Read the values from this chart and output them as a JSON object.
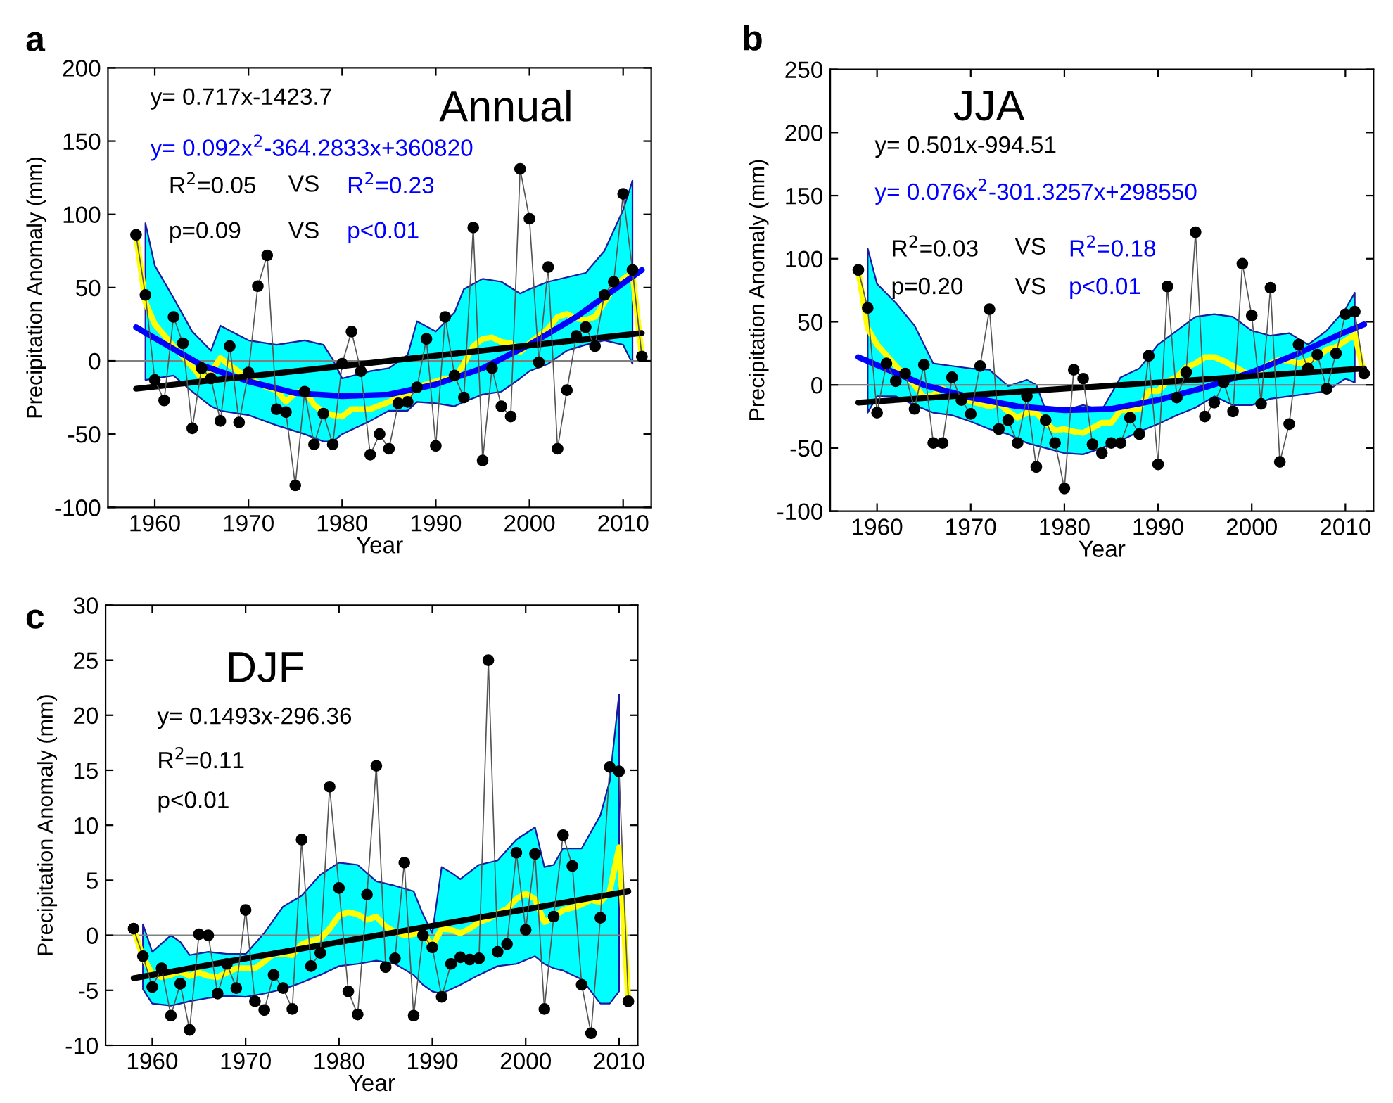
{
  "chart_data": [
    {
      "type": "line",
      "title": "Annual",
      "xlabel": "Year",
      "ylabel": "Precipitation Anomaly (mm)",
      "annotations": [
        "a",
        "y= 0.717x-1423.7",
        "y= 0.092x$^{2}$-364.2833x+360820",
        "R$^{2}$=0.05",
        "VS",
        "R$^{2}$=0.23",
        "p=0.09",
        "VS",
        "p<0.01"
      ],
      "xlim": [
        1955,
        2013
      ],
      "xticks": [
        1960,
        1970,
        1980,
        1990,
        2000,
        2010
      ],
      "ylim": [
        -100,
        200
      ],
      "yticks": [
        -100,
        -50,
        0,
        50,
        100,
        150,
        200
      ],
      "ref_lines": [
        {
          "axis": "y",
          "value": 0,
          "color": "#808080"
        }
      ],
      "x": [
        1958,
        1959,
        1960,
        1961,
        1962,
        1963,
        1964,
        1965,
        1966,
        1967,
        1968,
        1969,
        1970,
        1971,
        1972,
        1973,
        1974,
        1975,
        1976,
        1977,
        1978,
        1979,
        1980,
        1981,
        1982,
        1983,
        1984,
        1985,
        1986,
        1987,
        1988,
        1989,
        1990,
        1991,
        1992,
        1993,
        1994,
        1995,
        1996,
        1997,
        1998,
        1999,
        2000,
        2001,
        2002,
        2003,
        2004,
        2005,
        2006,
        2007,
        2008,
        2009,
        2010,
        2011,
        2012
      ],
      "series": [
        {
          "color": "#000000",
          "marker": "circle",
          "values": [
            86,
            45,
            -13,
            -27,
            30,
            12,
            -46,
            -5,
            -12,
            -41,
            10,
            -42,
            -8,
            51,
            72,
            -33,
            -35,
            -85,
            -21,
            -57,
            -36,
            -57,
            -2,
            20,
            -7,
            -64,
            -50,
            -60,
            -29,
            -28,
            -18,
            15,
            -58,
            30,
            -10,
            -25,
            91,
            -68,
            -5,
            -31,
            -38,
            131,
            97,
            -1,
            64,
            -60,
            -20,
            17,
            23,
            10,
            45,
            54,
            114,
            62,
            3
          ]
        },
        {
          "color": "#ffff00",
          "x": [
            1958,
            1959,
            1960,
            1962,
            1964,
            1965,
            1966,
            1967,
            1968,
            1970,
            1972,
            1973,
            1974,
            1975,
            1976,
            1977,
            1978,
            1979,
            1980,
            1981,
            1983,
            1985,
            1986,
            1987,
            1988,
            1989,
            1990,
            1991,
            1992,
            1993,
            1994,
            1995,
            1996,
            1997,
            1998,
            1999,
            2000,
            2001,
            2002,
            2003,
            2004,
            2005,
            2006,
            2007,
            2008,
            2009,
            2010,
            2011,
            2012
          ],
          "values": [
            86,
            40,
            25,
            10,
            -4,
            -12,
            -8,
            2,
            -3,
            -12,
            -18,
            -20,
            -28,
            -22,
            -20,
            -30,
            -35,
            -37,
            -38,
            -33,
            -33,
            -28,
            -25,
            -24,
            -18,
            -16,
            -14,
            -12,
            -12,
            -2,
            10,
            15,
            16,
            13,
            12,
            6,
            12,
            17,
            22,
            30,
            32,
            29,
            28,
            30,
            40,
            50,
            56,
            60,
            3
          ],
          "upper": [
            null,
            94,
            65,
            43,
            20,
            null,
            7,
            24,
            null,
            14,
            null,
            11,
            null,
            null,
            14,
            null,
            11,
            1,
            -12,
            null,
            -7,
            -5,
            null,
            4,
            27,
            null,
            20,
            null,
            33,
            49,
            null,
            56,
            null,
            54,
            null,
            46,
            49,
            null,
            54,
            null,
            57,
            null,
            60,
            null,
            75,
            null,
            103,
            123,
            null
          ],
          "lower": [
            null,
            -13,
            -12,
            -10,
            -21,
            null,
            -31,
            -34,
            null,
            -37,
            null,
            -44,
            null,
            null,
            -50,
            null,
            -55,
            -55,
            -50,
            null,
            -41,
            -34,
            null,
            -34,
            -28,
            null,
            -29,
            null,
            -31,
            -28,
            null,
            -23,
            null,
            -21,
            null,
            -12,
            -7,
            null,
            -2,
            null,
            7,
            null,
            11,
            null,
            14,
            null,
            11,
            -2,
            null
          ]
        },
        {
          "color": "#0000ff",
          "x": [
            1958,
            1965,
            1970,
            1975,
            1980,
            1985,
            1990,
            1995,
            2000,
            2005,
            2010,
            2012
          ],
          "values": [
            23,
            -3,
            -14,
            -22,
            -24,
            -23,
            -16,
            -5,
            11,
            30,
            53,
            62
          ]
        },
        {
          "color": "#000000",
          "x": [
            1958,
            2012
          ],
          "values": [
            -19,
            19
          ]
        }
      ]
    },
    {
      "type": "line",
      "title": "JJA",
      "xlabel": "Year",
      "ylabel": "Precipitation Anomaly (mm)",
      "annotations": [
        "b",
        "y= 0.501x-994.51",
        "y= 0.076x$^{2}$-301.3257x+298550",
        "R$^{2}$=0.03",
        "VS",
        "R$^{2}$=0.18",
        "p=0.20",
        "VS",
        "p<0.01"
      ],
      "xlim": [
        1955,
        2013
      ],
      "xticks": [
        1960,
        1970,
        1980,
        1990,
        2000,
        2010
      ],
      "ylim": [
        -100,
        250
      ],
      "yticks": [
        -100,
        -50,
        0,
        50,
        100,
        150,
        200,
        250
      ],
      "ref_lines": [
        {
          "axis": "y",
          "value": 0,
          "color": "#808080"
        }
      ],
      "x": [
        1958,
        1959,
        1960,
        1961,
        1962,
        1963,
        1964,
        1965,
        1966,
        1967,
        1968,
        1969,
        1970,
        1971,
        1972,
        1973,
        1974,
        1975,
        1976,
        1977,
        1978,
        1979,
        1980,
        1981,
        1982,
        1983,
        1984,
        1985,
        1986,
        1987,
        1988,
        1989,
        1990,
        1991,
        1992,
        1993,
        1994,
        1995,
        1996,
        1997,
        1998,
        1999,
        2000,
        2001,
        2002,
        2003,
        2004,
        2005,
        2006,
        2007,
        2008,
        2009,
        2010,
        2011,
        2012
      ],
      "series": [
        {
          "color": "#000000",
          "marker": "circle",
          "values": [
            91,
            61,
            -22,
            17,
            3,
            9,
            -19,
            16,
            -46,
            -46,
            6,
            -12,
            -23,
            15,
            60,
            -35,
            -28,
            -46,
            -9,
            -65,
            -28,
            -46,
            -82,
            12,
            5,
            -47,
            -54,
            -46,
            -46,
            -26,
            -39,
            23,
            -63,
            78,
            -10,
            10,
            121,
            -25,
            -14,
            2,
            -21,
            96,
            55,
            -15,
            77,
            -61,
            -31,
            32,
            13,
            24,
            -3,
            25,
            56,
            58,
            9
          ]
        },
        {
          "color": "#ffff00",
          "x": [
            1958,
            1959,
            1960,
            1962,
            1964,
            1965,
            1966,
            1967,
            1968,
            1970,
            1972,
            1973,
            1974,
            1975,
            1976,
            1977,
            1978,
            1979,
            1980,
            1981,
            1982,
            1983,
            1984,
            1985,
            1986,
            1987,
            1988,
            1989,
            1990,
            1991,
            1992,
            1993,
            1994,
            1995,
            1996,
            1997,
            1998,
            1999,
            2000,
            2001,
            2002,
            2003,
            2004,
            2005,
            2006,
            2007,
            2008,
            2009,
            2010,
            2011,
            2012
          ],
          "values": [
            90,
            45,
            32,
            15,
            0,
            -10,
            -8,
            -3,
            -7,
            -13,
            -17,
            -15,
            -21,
            -26,
            -22,
            -22,
            -30,
            -36,
            -35,
            -37,
            -38,
            -34,
            -30,
            -30,
            -20,
            -20,
            -19,
            -5,
            -5,
            3,
            6,
            14,
            17,
            22,
            22,
            19,
            15,
            11,
            7,
            12,
            17,
            20,
            19,
            17,
            19,
            22,
            28,
            30,
            35,
            40,
            9
          ],
          "upper": [
            null,
            108,
            80,
            65,
            47,
            null,
            17,
            null,
            15,
            13,
            12,
            null,
            -1,
            null,
            4,
            0,
            -20,
            null,
            -20,
            null,
            -16,
            null,
            -20,
            null,
            6,
            null,
            13,
            null,
            32,
            null,
            43,
            null,
            54,
            null,
            56,
            null,
            54,
            null,
            43,
            null,
            39,
            null,
            41,
            null,
            32,
            null,
            43,
            null,
            60,
            73,
            null
          ],
          "lower": [
            null,
            -22,
            -9,
            -9,
            -16,
            null,
            -22,
            null,
            -24,
            -29,
            -35,
            null,
            -39,
            null,
            -46,
            -48,
            -50,
            null,
            -54,
            null,
            -55,
            null,
            -50,
            null,
            -44,
            null,
            -37,
            null,
            -31,
            null,
            -24,
            null,
            -18,
            null,
            -9,
            null,
            -16,
            null,
            -16,
            null,
            -11,
            null,
            -9,
            null,
            -7,
            null,
            -5,
            null,
            5,
            2,
            null
          ]
        },
        {
          "color": "#0000ff",
          "x": [
            1958,
            1965,
            1970,
            1975,
            1980,
            1985,
            1990,
            1995,
            2000,
            2005,
            2010,
            2012
          ],
          "values": [
            22,
            0,
            -10,
            -17,
            -20,
            -19,
            -12,
            -2,
            10,
            25,
            42,
            48
          ]
        },
        {
          "color": "#000000",
          "x": [
            1958,
            2012
          ],
          "values": [
            -14,
            13
          ]
        }
      ]
    },
    {
      "type": "line",
      "title": "DJF",
      "xlabel": "Year",
      "ylabel": "Precipitation Anomaly (mm)",
      "annotations": [
        "c",
        "y= 0.1493x-296.36",
        "R$^{2}$=0.11",
        "p<0.01"
      ],
      "xlim": [
        1955,
        2012
      ],
      "xticks": [
        1960,
        1970,
        1980,
        1990,
        2000,
        2010
      ],
      "ylim": [
        -10,
        30
      ],
      "yticks": [
        -10,
        -5,
        0,
        5,
        10,
        15,
        20,
        25,
        30
      ],
      "ref_lines": [
        {
          "axis": "y",
          "value": 0,
          "color": "#808080"
        }
      ],
      "x": [
        1958,
        1959,
        1960,
        1961,
        1962,
        1963,
        1964,
        1965,
        1966,
        1967,
        1968,
        1969,
        1970,
        1971,
        1972,
        1973,
        1974,
        1975,
        1976,
        1977,
        1978,
        1979,
        1980,
        1981,
        1982,
        1983,
        1984,
        1985,
        1986,
        1987,
        1988,
        1989,
        1990,
        1991,
        1992,
        1993,
        1994,
        1995,
        1996,
        1997,
        1998,
        1999,
        2000,
        2001,
        2002,
        2003,
        2004,
        2005,
        2006,
        2007,
        2008,
        2009,
        2010,
        2011
      ],
      "series": [
        {
          "color": "#000000",
          "marker": "circle",
          "values": [
            0.6,
            -1.9,
            -4.7,
            -3.0,
            -7.3,
            -4.4,
            -8.6,
            0.1,
            0.0,
            -5.3,
            -2.6,
            -4.8,
            2.3,
            -6.0,
            -6.8,
            -3.6,
            -4.8,
            -6.7,
            8.7,
            -2.8,
            -1.6,
            13.5,
            4.3,
            -5.1,
            -7.2,
            3.7,
            15.4,
            -2.9,
            -2.1,
            6.6,
            -7.3,
            0.0,
            -1.1,
            -5.6,
            -2.6,
            -2.0,
            -2.2,
            -2.1,
            25.0,
            -1.5,
            -0.8,
            7.5,
            0.5,
            7.4,
            -6.7,
            1.7,
            9.1,
            6.3,
            -4.5,
            -8.9,
            1.6,
            15.3,
            14.9,
            -6.0
          ]
        },
        {
          "color": "#ffff00",
          "values": [
            0.6,
            -2.0,
            -3.5,
            -3.8,
            -3.6,
            -3.3,
            -3.7,
            -3.4,
            -3.7,
            -3.8,
            -3.4,
            -3.0,
            -3.0,
            -3.0,
            -2.4,
            -1.7,
            -1.7,
            -1.8,
            -0.8,
            -0.5,
            -0.3,
            0.6,
            1.8,
            2.1,
            1.9,
            1.4,
            1.7,
            0.8,
            0.3,
            0.0,
            0.1,
            0.3,
            -1.0,
            0.6,
            0.5,
            0.2,
            0.6,
            1.2,
            1.5,
            2.0,
            2.4,
            3.3,
            3.8,
            3.3,
            1.2,
            1.6,
            2.3,
            2.5,
            2.8,
            3.2,
            3.0,
            4.0,
            8.0,
            -6.0
          ],
          "upper": [
            null,
            1.0,
            -1.5,
            null,
            0,
            -0.6,
            -1.8,
            null,
            -1.5,
            null,
            -1.7,
            null,
            -1.7,
            null,
            0.2,
            null,
            2.6,
            null,
            3.6,
            null,
            5.5,
            null,
            6.6,
            null,
            6.4,
            null,
            4.9,
            null,
            4.5,
            null,
            4.0,
            1.9,
            0.2,
            6.2,
            5.7,
            5.1,
            null,
            6.4,
            null,
            6.8,
            null,
            8.7,
            null,
            9.8,
            6.2,
            6.4,
            7.9,
            null,
            7.9,
            null,
            10.9,
            14.0,
            21.9,
            null
          ],
          "lower": [
            null,
            -4.9,
            -6.2,
            null,
            -6.4,
            -6.2,
            -6.0,
            null,
            -5.7,
            null,
            -5.5,
            null,
            -5.6,
            null,
            -5.3,
            null,
            -4.9,
            null,
            -4.3,
            null,
            -3.6,
            null,
            -2.8,
            null,
            -2.6,
            null,
            -2.3,
            null,
            -2.6,
            null,
            -3.6,
            -4.5,
            -5.1,
            -5.3,
            -4.9,
            -4.5,
            null,
            -3.6,
            null,
            -2.8,
            null,
            -2.6,
            null,
            -1.9,
            -2.6,
            -3.0,
            -3.2,
            null,
            -4.0,
            null,
            -6.2,
            -6.2,
            -5.1,
            null
          ]
        },
        {
          "color": "#000000",
          "x": [
            1958,
            2011
          ],
          "values": [
            -3.9,
            4.0
          ]
        }
      ]
    }
  ]
}
